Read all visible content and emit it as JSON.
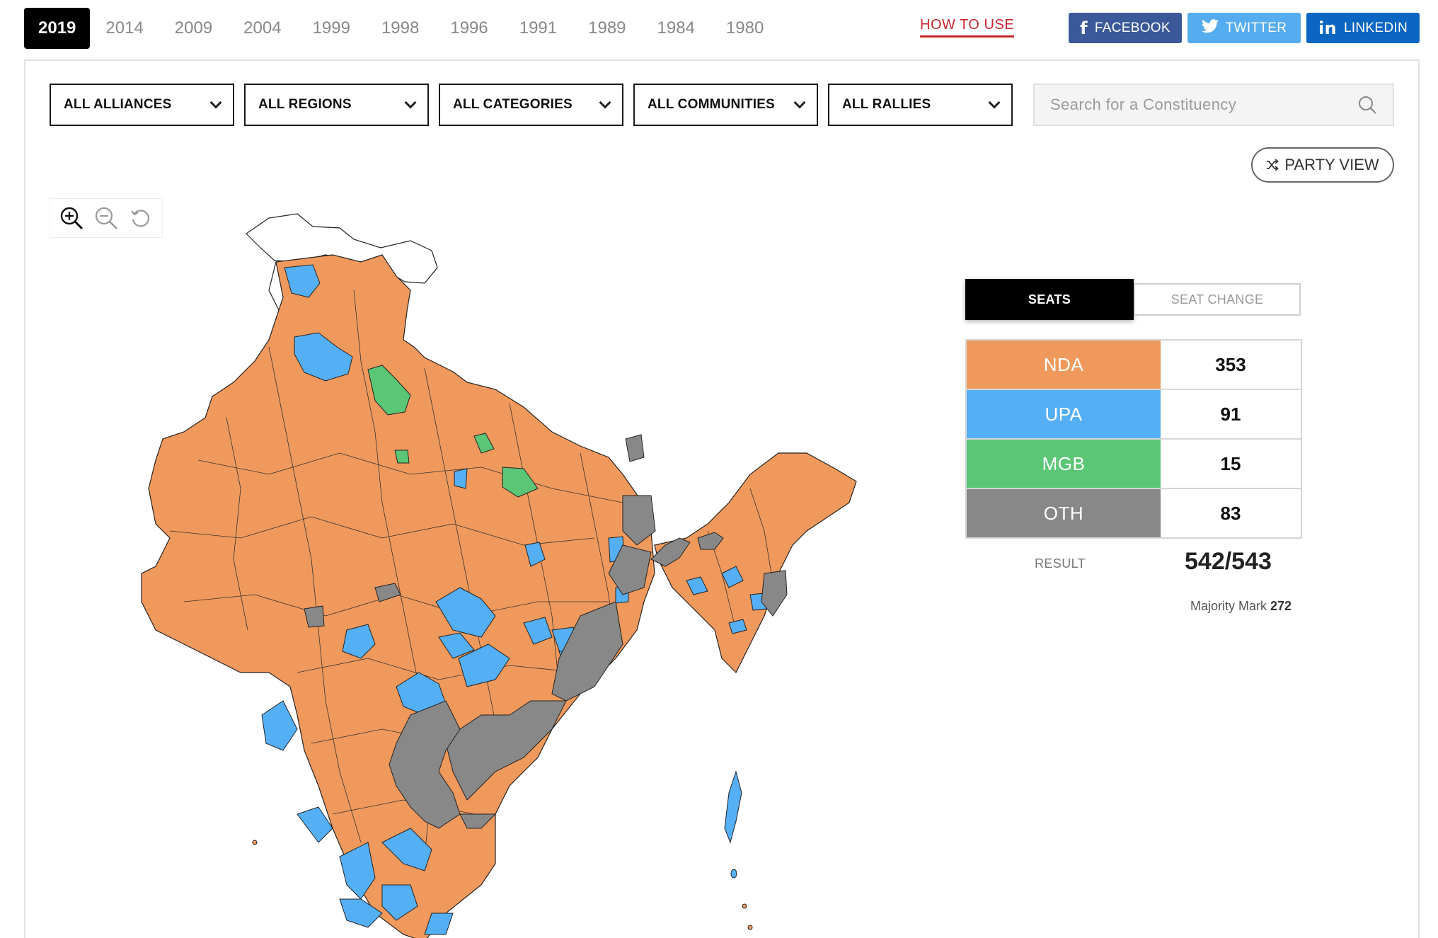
{
  "years": [
    "2019",
    "2014",
    "2009",
    "2004",
    "1999",
    "1998",
    "1996",
    "1991",
    "1989",
    "1984",
    "1980"
  ],
  "active_year": "2019",
  "how_to_use": "HOW TO USE",
  "share": {
    "facebook": "FACEBOOK",
    "twitter": "TWITTER",
    "linkedin": "LINKEDIN"
  },
  "filters": [
    "ALL ALLIANCES",
    "ALL REGIONS",
    "ALL CATEGORIES",
    "ALL COMMUNITIES",
    "ALL RALLIES"
  ],
  "search": {
    "placeholder": "Search for a Constituency"
  },
  "party_view": "PARTY VIEW",
  "tabs": {
    "seats": "SEATS",
    "seat_change": "SEAT CHANGE"
  },
  "alliances": [
    {
      "name": "NDA",
      "seats": "353",
      "color": "#f0995c"
    },
    {
      "name": "UPA",
      "seats": "91",
      "color": "#55aff4"
    },
    {
      "name": "MGB",
      "seats": "15",
      "color": "#5bc675"
    },
    {
      "name": "OTH",
      "seats": "83",
      "color": "#888888"
    }
  ],
  "result": {
    "label": "RESULT",
    "value": "542/543"
  },
  "majority": {
    "label": "Majority Mark",
    "value": "272"
  },
  "map": {
    "icons": [
      "zoom-in-icon",
      "zoom-out-icon",
      "reset-icon"
    ],
    "legend_colors": {
      "NDA": "#f0995c",
      "UPA": "#55aff4",
      "MGB": "#5bc675",
      "OTH": "#888888"
    }
  }
}
